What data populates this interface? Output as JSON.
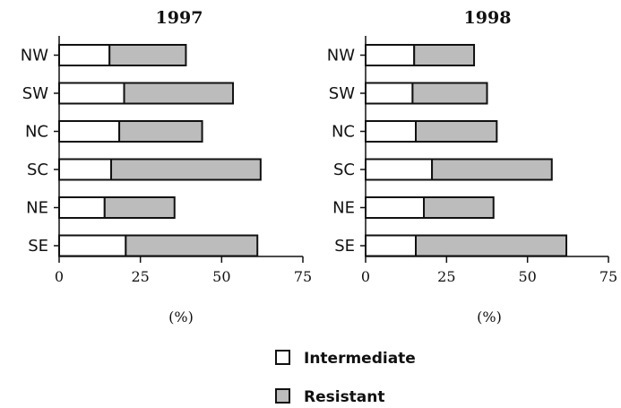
{
  "chart_data": [
    {
      "type": "bar",
      "orientation": "horizontal",
      "stacked": true,
      "title": "1997",
      "categories": [
        "NW",
        "SW",
        "NC",
        "SC",
        "NE",
        "SE"
      ],
      "series": [
        {
          "name": "Intermediate",
          "values": [
            15.5,
            20,
            18.5,
            16,
            14,
            20.5
          ]
        },
        {
          "name": "Resistant",
          "values": [
            23.5,
            33.5,
            25.5,
            46,
            21.5,
            40.5
          ]
        }
      ],
      "xlabel": "(%)",
      "xlim": [
        0,
        75
      ],
      "xticks": [
        "0",
        "25",
        "50",
        "75"
      ],
      "grid": false
    },
    {
      "type": "bar",
      "orientation": "horizontal",
      "stacked": true,
      "title": "1998",
      "categories": [
        "NW",
        "SW",
        "NC",
        "SC",
        "NE",
        "SE"
      ],
      "series": [
        {
          "name": "Intermediate",
          "values": [
            15,
            14.5,
            15.5,
            20.5,
            18,
            15.5
          ]
        },
        {
          "name": "Resistant",
          "values": [
            18.5,
            23,
            25,
            37,
            21.5,
            46.5
          ]
        }
      ],
      "xlabel": "(%)",
      "xlim": [
        0,
        75
      ],
      "xticks": [
        "0",
        "25",
        "50",
        "75"
      ],
      "grid": false
    }
  ],
  "legend": {
    "position": "bottom-center",
    "items": [
      {
        "label": "Intermediate",
        "color": "#ffffff"
      },
      {
        "label": "Resistant",
        "color": "#bcbcbc"
      }
    ]
  },
  "colors": {
    "intermediate": "#ffffff",
    "resistant": "#bcbcbc",
    "stroke": "#111111"
  }
}
